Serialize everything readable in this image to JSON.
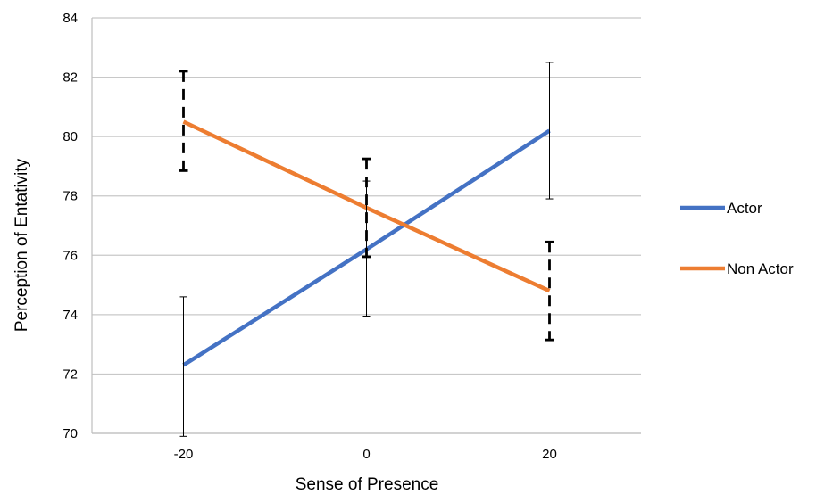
{
  "chart_data": {
    "type": "line",
    "title": "",
    "xlabel": "Sense of Presence",
    "ylabel": "Perception of Entativity",
    "x": [
      -20,
      0,
      20
    ],
    "x_tick_labels": [
      "-20",
      "0",
      "20"
    ],
    "xlim": [
      -30,
      30
    ],
    "ylim": [
      70,
      84
    ],
    "y_ticks": [
      70,
      72,
      74,
      76,
      78,
      80,
      82,
      84
    ],
    "y_tick_labels": [
      "70",
      "72",
      "74",
      "76",
      "78",
      "80",
      "82",
      "84"
    ],
    "grid": "horizontal",
    "legend_position": "right",
    "series": [
      {
        "name": "Actor",
        "color": "#4472C4",
        "values": [
          72.3,
          76.2,
          80.2
        ],
        "error_low": [
          69.9,
          73.95,
          77.9
        ],
        "error_high": [
          74.6,
          78.5,
          82.5
        ],
        "error_style": "solid"
      },
      {
        "name": "Non Actor",
        "color": "#ED7D31",
        "values": [
          80.5,
          77.6,
          74.8
        ],
        "error_low": [
          78.85,
          75.95,
          73.15
        ],
        "error_high": [
          82.2,
          79.25,
          76.45
        ],
        "error_style": "dashed"
      }
    ]
  }
}
